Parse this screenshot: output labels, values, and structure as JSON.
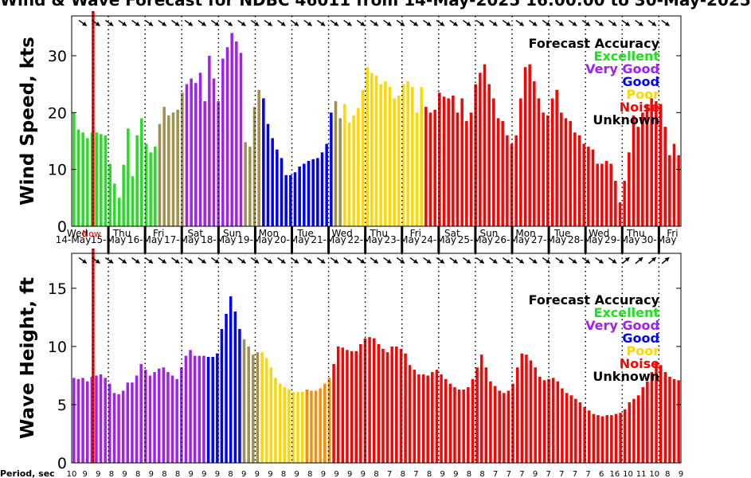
{
  "title": "Wind & Wave Forecast for NDBC 46011 from 14-May-2025 16:00:00 to 30-May-2025",
  "chart_data": [
    {
      "type": "bar",
      "ylabel": "Wind Speed, kts",
      "ylim": [
        0,
        37
      ],
      "yticks": [
        0,
        10,
        20,
        30
      ],
      "values": [
        20.0,
        17.0,
        16.5,
        15.5,
        16.5,
        16.5,
        16.2,
        16.0,
        11.0,
        7.5,
        5.0,
        10.8,
        17.2,
        8.8,
        16.0,
        19.0,
        14.5,
        13.0,
        14.0,
        18.0,
        21.0,
        19.5,
        20.0,
        20.5,
        23.5,
        25.0,
        26.0,
        25.2,
        27.0,
        22.0,
        30.0,
        26.0,
        22.0,
        29.5,
        31.5,
        34.0,
        32.5,
        30.5,
        14.8,
        14.0,
        21.0,
        24.0,
        22.5,
        18.0,
        15.5,
        13.5,
        12.0,
        9.0,
        9.0,
        9.5,
        10.5,
        11.0,
        11.5,
        11.8,
        12.0,
        13.0,
        14.5,
        20.0,
        22.0,
        19.0,
        21.5,
        18.2,
        19.5,
        20.8,
        24.0,
        28.0,
        27.0,
        26.5,
        25.0,
        25.5,
        24.5,
        22.5,
        23.0,
        25.0,
        25.5,
        24.5,
        20.0,
        24.5,
        21.0,
        20.0,
        20.5,
        23.5,
        22.8,
        22.5,
        23.0,
        20.0,
        22.5,
        18.5,
        20.0,
        25.0,
        27.0,
        28.5,
        25.0,
        22.5,
        19.0,
        18.5,
        16.0,
        14.5,
        16.0,
        22.5,
        28.0,
        28.5,
        25.5,
        22.5,
        20.0,
        19.5,
        22.5,
        24.0,
        20.0,
        19.0,
        18.5,
        16.5,
        16.0,
        14.5,
        14.0,
        13.5,
        11.0,
        11.0,
        11.5,
        11.0,
        8.0,
        4.2,
        8.0,
        13.0,
        19.5,
        17.5,
        20.0,
        21.5,
        22.5,
        22.0,
        21.5,
        17.5,
        12.5,
        14.5,
        12.5
      ],
      "legend": {
        "title": "Forecast Accuracy",
        "items": [
          {
            "label": "Excellent",
            "color": "#20e020"
          },
          {
            "label": "Very Good",
            "color": "#a020f0"
          },
          {
            "label": "Good",
            "color": "#0000ff"
          },
          {
            "label": "Poor",
            "color": "#ffd700"
          },
          {
            "label": "Noise",
            "color": "#ff0000"
          },
          {
            "label": "Unknown",
            "color": "#000000"
          }
        ]
      }
    },
    {
      "type": "bar",
      "ylabel": "Wave Height, ft",
      "ylim": [
        0,
        18
      ],
      "yticks": [
        0,
        5,
        10,
        15
      ],
      "values": [
        7.3,
        7.2,
        7.3,
        7.0,
        7.4,
        7.5,
        7.6,
        7.3,
        6.8,
        6.0,
        5.9,
        6.2,
        6.9,
        6.9,
        7.5,
        8.5,
        8.0,
        7.5,
        7.8,
        8.1,
        8.2,
        7.8,
        7.5,
        7.2,
        8.2,
        9.2,
        9.7,
        9.2,
        9.2,
        9.2,
        9.1,
        9.1,
        9.4,
        11.5,
        12.8,
        14.3,
        13.0,
        11.5,
        10.6,
        10.0,
        9.3,
        9.5,
        9.5,
        9.0,
        8.2,
        7.3,
        6.8,
        6.5,
        6.3,
        6.1,
        6.1,
        6.1,
        6.3,
        6.2,
        6.2,
        6.4,
        6.8,
        7.3,
        8.5,
        10.0,
        9.9,
        9.7,
        9.6,
        9.6,
        10.2,
        10.7,
        10.8,
        10.7,
        10.2,
        9.8,
        9.5,
        10.0,
        10.0,
        9.8,
        9.4,
        8.4,
        8.0,
        7.6,
        7.6,
        7.5,
        7.8,
        8.0,
        7.6,
        7.2,
        6.8,
        6.5,
        6.3,
        6.3,
        6.5,
        7.2,
        8.2,
        9.3,
        8.2,
        7.0,
        6.6,
        6.2,
        6.0,
        6.2,
        6.8,
        8.2,
        9.4,
        9.3,
        8.8,
        8.2,
        7.4,
        7.1,
        7.2,
        7.3,
        7.0,
        6.4,
        6.0,
        5.8,
        5.5,
        5.2,
        4.8,
        4.5,
        4.2,
        4.1,
        4.0,
        4.1,
        4.1,
        4.2,
        4.3,
        4.6,
        5.2,
        5.5,
        5.8,
        6.5,
        7.0,
        7.8,
        8.7,
        8.4,
        7.8,
        7.4,
        7.2,
        7.1
      ],
      "legend": {
        "title": "Forecast Accuracy",
        "items": [
          {
            "label": "Excellent",
            "color": "#20e020"
          },
          {
            "label": "Very Good",
            "color": "#a020f0"
          },
          {
            "label": "Good",
            "color": "#0000ff"
          },
          {
            "label": "Poor",
            "color": "#ffd700"
          },
          {
            "label": "Noise",
            "color": "#ff0000"
          },
          {
            "label": "Unknown",
            "color": "#000000"
          }
        ]
      }
    }
  ],
  "days": [
    {
      "dow": "Wed",
      "date": "14-May"
    },
    {
      "dow": "Thu",
      "date": "15-May"
    },
    {
      "dow": "Fri",
      "date": "16-May"
    },
    {
      "dow": "Sat",
      "date": "17-May"
    },
    {
      "dow": "Sun",
      "date": "18-May"
    },
    {
      "dow": "Mon",
      "date": "19-May"
    },
    {
      "dow": "Tue",
      "date": "20-May"
    },
    {
      "dow": "Wed",
      "date": "21-May"
    },
    {
      "dow": "Thu",
      "date": "22-May"
    },
    {
      "dow": "Fri",
      "date": "23-May"
    },
    {
      "dow": "Sat",
      "date": "24-May"
    },
    {
      "dow": "Sun",
      "date": "25-May"
    },
    {
      "dow": "Mon",
      "date": "26-May"
    },
    {
      "dow": "Tue",
      "date": "27-May"
    },
    {
      "dow": "Wed",
      "date": "28-May"
    },
    {
      "dow": "Thu",
      "date": "29-May"
    },
    {
      "dow": "Fri",
      "date": "30-May"
    }
  ],
  "now_label": "Now",
  "period": {
    "label": "Period, sec",
    "values": [
      "10",
      "9",
      "9",
      "8",
      "9",
      "8",
      "9",
      "8",
      "8",
      "9",
      "9",
      "9",
      "8",
      "9",
      "9",
      "9",
      "8",
      "9",
      "8",
      "9",
      "9",
      "9",
      "9",
      "8",
      "7",
      "8",
      "7",
      "8",
      "9",
      "9",
      "8",
      "8",
      "7",
      "7",
      "7",
      "9",
      "7",
      "7",
      "7",
      "7",
      "6",
      "16",
      "10",
      "11",
      "10",
      "8",
      "9"
    ]
  },
  "colors": {
    "green": "#20e020",
    "purple": "#a020f0",
    "blue": "#0000ff",
    "olive": "#a09050",
    "gold": "#ffd700",
    "orange": "#ff8c00",
    "red": "#ff0000",
    "now_line": "#ff0000"
  }
}
